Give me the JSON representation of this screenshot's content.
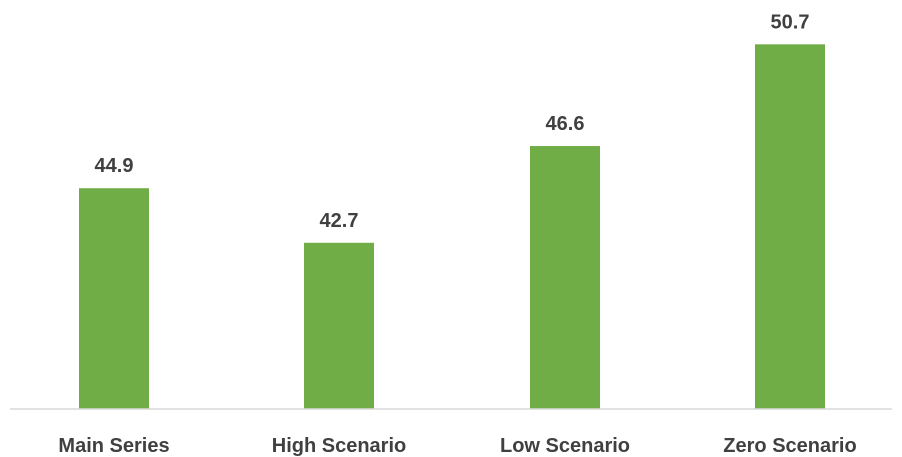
{
  "chart_data": {
    "type": "bar",
    "categories": [
      "Main Series",
      "High Scenario",
      "Low Scenario",
      "Zero Scenario"
    ],
    "values": [
      44.9,
      42.7,
      46.6,
      50.7
    ],
    "value_labels": [
      "44.9",
      "42.7",
      "46.6",
      "50.7"
    ],
    "title": "",
    "xlabel": "",
    "ylabel": "",
    "ylim": [
      36.0,
      51.6
    ],
    "grid": false,
    "legend": "none",
    "bar_color": "#70ad47",
    "axis_color": "#d9d9d9",
    "label_color": "#404040"
  }
}
